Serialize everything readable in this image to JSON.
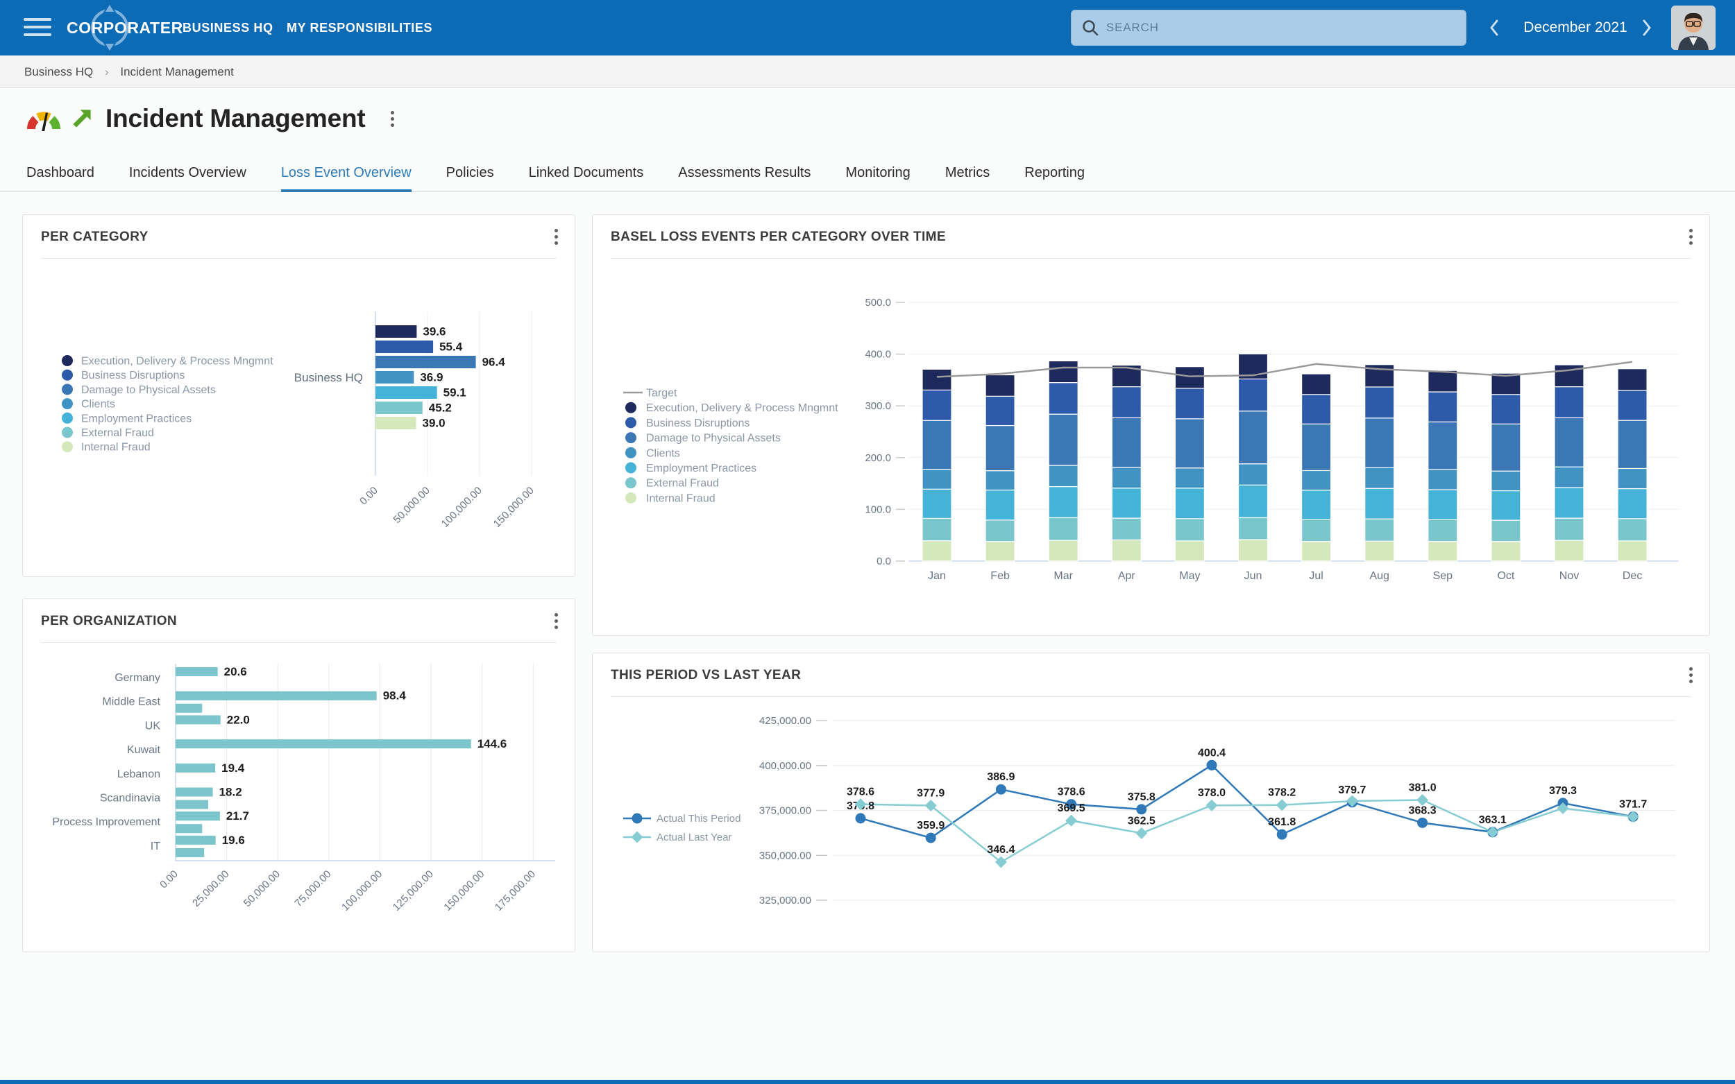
{
  "header": {
    "brand": "CORPORATER",
    "nav": [
      {
        "label": "BUSINESS HQ"
      },
      {
        "label": "MY RESPONSIBILITIES"
      }
    ],
    "search_placeholder": "SEARCH",
    "period": "December 2021"
  },
  "breadcrumb": {
    "items": [
      "Business HQ",
      "Incident Management"
    ],
    "separator": "›"
  },
  "page": {
    "title": "Incident Management"
  },
  "tabs": [
    {
      "label": "Dashboard",
      "active": false
    },
    {
      "label": "Incidents Overview",
      "active": false
    },
    {
      "label": "Loss Event Overview",
      "active": true
    },
    {
      "label": "Policies",
      "active": false
    },
    {
      "label": "Linked Documents",
      "active": false
    },
    {
      "label": "Assessments Results",
      "active": false
    },
    {
      "label": "Monitoring",
      "active": false
    },
    {
      "label": "Metrics",
      "active": false
    },
    {
      "label": "Reporting",
      "active": false
    }
  ],
  "colors": {
    "header_bg": "#0d6ab4",
    "accent": "#2d7cb8",
    "grid": "#ececee",
    "axis": "#c9d6e8",
    "tick_text": "#6a7382",
    "legend_text": "#8d96a6",
    "value_label": "#1d1d1d"
  },
  "chart_data": [
    {
      "id": "per_category",
      "type": "bar",
      "orientation": "horizontal",
      "title": "PER CATEGORY",
      "group_label": "Business HQ",
      "categories": [
        "Execution, Delivery & Process Mngmnt",
        "Business Disruptions",
        "Damage to Physical Assets",
        "Clients",
        "Employment Practices",
        "External Fraud",
        "Internal Fraud"
      ],
      "values": [
        39.6,
        55.4,
        96.4,
        36.9,
        59.1,
        45.2,
        39.0
      ],
      "colors": [
        "#1f2a5c",
        "#2d5ba9",
        "#3b76b5",
        "#4193c4",
        "#45b3d8",
        "#79c6cd",
        "#d5e8bb"
      ],
      "value_unit": "thousands",
      "xlim": [
        0,
        200000
      ],
      "x_ticks": [
        "0.00",
        "50,000.00",
        "100,000.00",
        "150,000.00"
      ],
      "grid": true,
      "legend_position": "left"
    },
    {
      "id": "basel_loss_events_over_time",
      "type": "bar",
      "stacked": true,
      "title": "BASEL LOSS EVENTS PER CATEGORY OVER TIME",
      "categories": [
        "Jan",
        "Feb",
        "Mar",
        "Apr",
        "May",
        "Jun",
        "Jul",
        "Aug",
        "Sep",
        "Oct",
        "Nov",
        "Dec"
      ],
      "series": [
        {
          "name": "Internal Fraud",
          "color": "#d5e8bb",
          "values": [
            39.2,
            37.9,
            40.0,
            41.0,
            39.0,
            41.5,
            38.0,
            38.5,
            38.0,
            38.0,
            40.0,
            39.0
          ]
        },
        {
          "name": "External Fraud",
          "color": "#79c6cd",
          "values": [
            43.3,
            41.4,
            44.0,
            42.0,
            43.0,
            42.5,
            42.0,
            43.0,
            42.0,
            41.0,
            43.0,
            43.0
          ]
        },
        {
          "name": "Employment Practices",
          "color": "#45b3d8",
          "values": [
            56.5,
            58.0,
            60.0,
            58.0,
            59.0,
            63.0,
            57.0,
            59.0,
            58.0,
            57.0,
            59.0,
            58.0
          ]
        },
        {
          "name": "Clients",
          "color": "#4193c4",
          "values": [
            38.4,
            37.4,
            41.0,
            40.0,
            39.0,
            41.0,
            38.0,
            40.0,
            39.0,
            38.0,
            40.0,
            39.0
          ]
        },
        {
          "name": "Damage to Physical Assets",
          "color": "#3b76b5",
          "values": [
            94.4,
            87.3,
            99.0,
            96.0,
            95.0,
            102.0,
            90.0,
            96.0,
            92.0,
            91.0,
            95.0,
            93.0
          ]
        },
        {
          "name": "Business Disruptions",
          "color": "#2d5ba9",
          "values": [
            58.8,
            56.6,
            61.0,
            60.0,
            59.0,
            62.0,
            57.0,
            60.0,
            58.0,
            57.0,
            60.0,
            58.0
          ]
        },
        {
          "name": "Execution, Delivery & Process Mngmnt",
          "color": "#1f2a5c",
          "values": [
            40.2,
            41.3,
            41.9,
            41.6,
            41.8,
            48.4,
            39.8,
            43.2,
            41.3,
            41.1,
            42.3,
            41.7
          ]
        }
      ],
      "target": {
        "name": "Target",
        "color": "#9a9a9a",
        "values": [
          356,
          362,
          374,
          374,
          357,
          359,
          381,
          371,
          366,
          358,
          369,
          385
        ]
      },
      "legend_order": [
        "Target",
        "Execution, Delivery & Process Mngmnt",
        "Business Disruptions",
        "Damage to Physical Assets",
        "Clients",
        "Employment Practices",
        "External Fraud",
        "Internal Fraud"
      ],
      "ylim": [
        0,
        500
      ],
      "y_ticks": [
        "0.0",
        "100.0",
        "200.0",
        "300.0",
        "400.0",
        "500.0"
      ],
      "grid": true,
      "legend_position": "left"
    },
    {
      "id": "per_organization",
      "type": "bar",
      "orientation": "horizontal",
      "title": "PER ORGANIZATION",
      "categories": [
        "Germany",
        "Middle East",
        "UK",
        "Kuwait",
        "Lebanon",
        "Scandinavia",
        "Process Improvement",
        "IT"
      ],
      "values": [
        20.6,
        98.4,
        22.0,
        144.6,
        19.4,
        18.2,
        21.7,
        19.6
      ],
      "secondary_values": [
        null,
        13.0,
        null,
        null,
        null,
        16.0,
        13.0,
        14.0
      ],
      "color": "#7cc5cd",
      "value_unit": "thousands",
      "xlim": [
        0,
        175000
      ],
      "x_ticks": [
        "0.00",
        "25,000.00",
        "50,000.00",
        "75,000.00",
        "100,000.00",
        "125,000.00",
        "150,000.00",
        "175,000.00"
      ],
      "grid": true
    },
    {
      "id": "this_period_vs_last_year",
      "type": "line",
      "title": "THIS PERIOD VS LAST YEAR",
      "x": [
        "Jan",
        "Feb",
        "Mar",
        "Apr",
        "May",
        "Jun",
        "Jul",
        "Aug",
        "Sep",
        "Oct",
        "Nov",
        "Dec"
      ],
      "series": [
        {
          "name": "Actual This Period",
          "color": "#3079b8",
          "marker": "circle",
          "values": [
            370.8,
            359.9,
            386.9,
            378.6,
            375.8,
            400.4,
            361.8,
            379.7,
            368.3,
            363.1,
            379.3,
            371.7
          ],
          "labels": [
            "370.8",
            "359.9",
            "386.9",
            "378.6",
            "375.8",
            "400.4",
            "361.8",
            "379.7",
            "368.3",
            "363.1",
            "379.3",
            "371.7"
          ]
        },
        {
          "name": "Actual Last Year",
          "color": "#86ccd3",
          "marker": "diamond",
          "values": [
            378.6,
            377.9,
            346.4,
            369.5,
            362.5,
            378.0,
            378.2,
            380.4,
            381.0,
            363.1,
            376.4,
            371.7
          ],
          "labels": [
            "378.6",
            "377.9",
            "346.4",
            "369.5",
            "362.5",
            "378.0",
            "378.2",
            null,
            "381.0",
            null,
            null,
            null
          ]
        }
      ],
      "value_unit": "thousands",
      "ylim": [
        325000,
        425000
      ],
      "y_ticks": [
        "425,000.00",
        "400,000.00",
        "375,000.00",
        "350,000.00",
        "325,000.00"
      ],
      "grid": true,
      "legend_position": "left"
    }
  ]
}
